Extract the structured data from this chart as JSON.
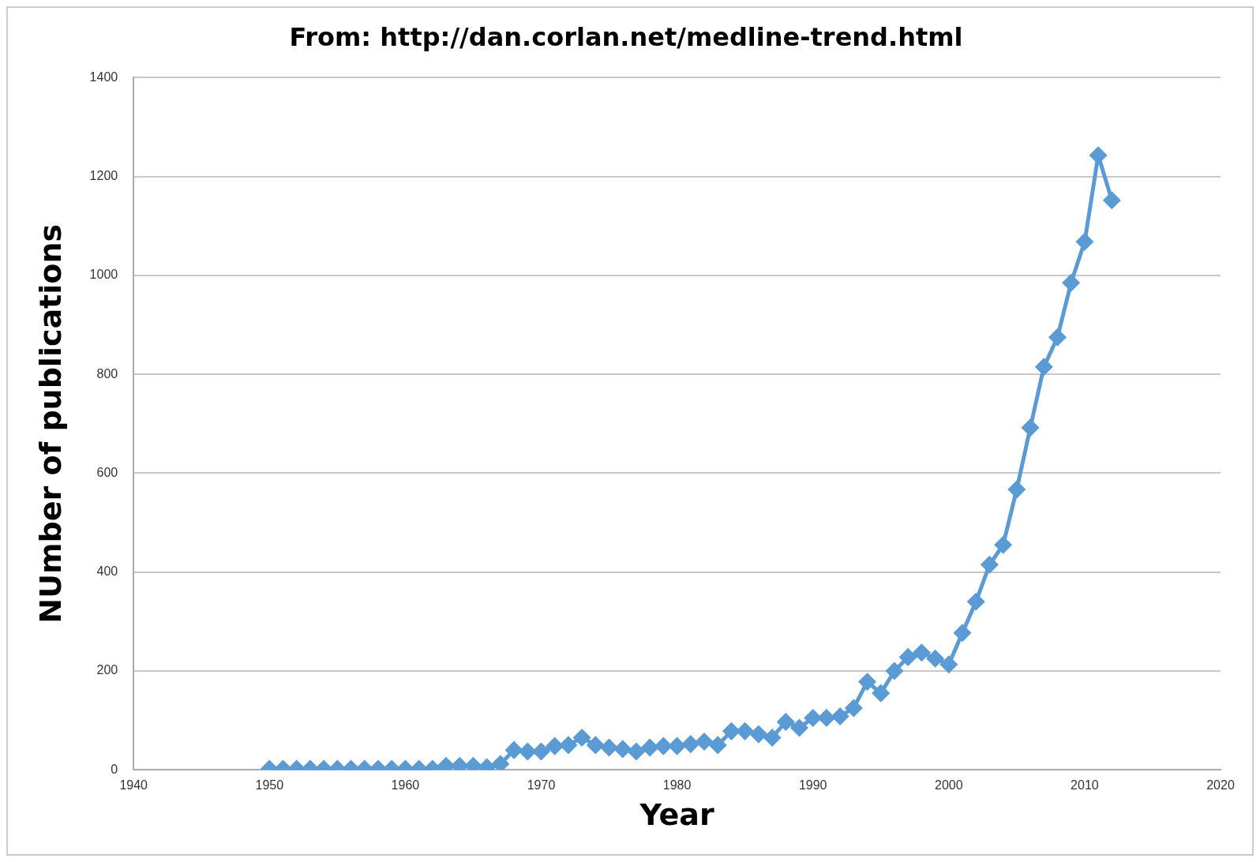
{
  "chart_data": {
    "type": "line",
    "title": "From: http://dan.corlan.net/medline-trend.html",
    "xlabel": "Year",
    "ylabel": "NUmber of publications",
    "x": [
      1950,
      1951,
      1952,
      1953,
      1954,
      1955,
      1956,
      1957,
      1958,
      1959,
      1960,
      1961,
      1962,
      1963,
      1964,
      1965,
      1966,
      1967,
      1968,
      1969,
      1970,
      1971,
      1972,
      1973,
      1974,
      1975,
      1976,
      1977,
      1978,
      1979,
      1980,
      1981,
      1982,
      1983,
      1984,
      1985,
      1986,
      1987,
      1988,
      1989,
      1990,
      1991,
      1992,
      1993,
      1994,
      1995,
      1996,
      1997,
      1998,
      1999,
      2000,
      2001,
      2002,
      2003,
      2004,
      2005,
      2006,
      2007,
      2008,
      2009,
      2010,
      2011,
      2012
    ],
    "series": [
      {
        "color": "#5b9bd5",
        "values": [
          2,
          2,
          2,
          2,
          2,
          2,
          2,
          2,
          2,
          2,
          2,
          2,
          2,
          8,
          8,
          8,
          5,
          12,
          40,
          37,
          37,
          48,
          50,
          65,
          50,
          45,
          42,
          37,
          45,
          48,
          48,
          52,
          57,
          50,
          78,
          78,
          72,
          65,
          97,
          85,
          105,
          105,
          108,
          125,
          178,
          155,
          200,
          228,
          237,
          225,
          213,
          277,
          340,
          415,
          455,
          567,
          692,
          815,
          875,
          985,
          1068,
          1243,
          1152
        ]
      }
    ],
    "xlim": [
      1940,
      2020
    ],
    "xticks": [
      1940,
      1950,
      1960,
      1970,
      1980,
      1990,
      2000,
      2010,
      2020
    ],
    "ylim": [
      0,
      1400
    ],
    "yticks": [
      0,
      200,
      400,
      600,
      800,
      1000,
      1200,
      1400
    ],
    "grid": "y",
    "legend": false,
    "marker": "diamond",
    "line_style": "solid"
  }
}
